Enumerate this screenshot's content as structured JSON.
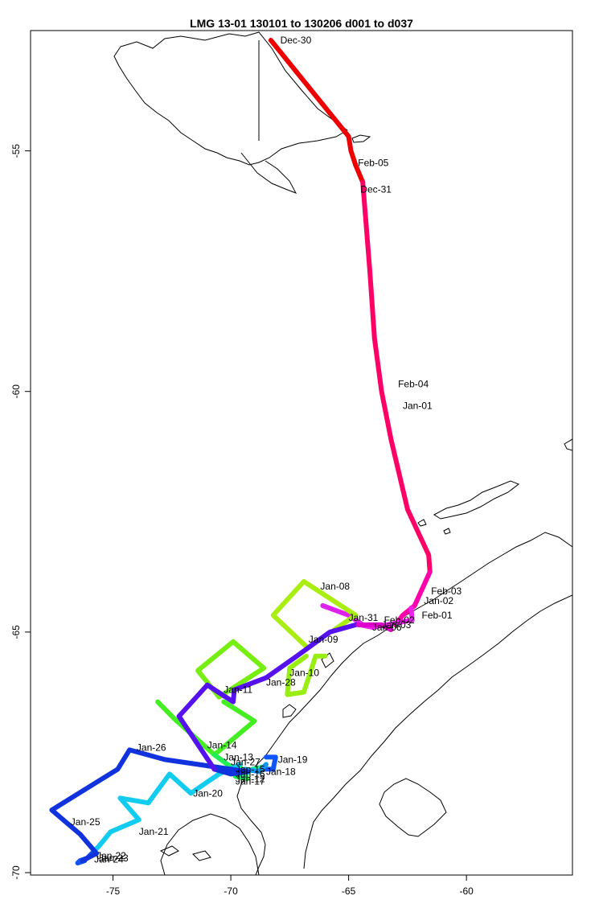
{
  "title": "LMG   13-01    130101 to 130206    d001 to d037",
  "chart_data": {
    "type": "map",
    "x_axis": {
      "ticks": [
        -75,
        -70,
        -65,
        -60
      ],
      "labels": [
        "-75",
        "-70",
        "-65",
        "-60"
      ]
    },
    "y_axis": {
      "ticks": [
        -55,
        -60,
        -65,
        -70
      ],
      "labels": [
        "-55",
        "-60",
        "-65",
        "-70"
      ]
    },
    "lon_range": [
      -78.5,
      -55.5
    ],
    "lat_range": [
      -70.05,
      -52.5
    ],
    "track_segments": [
      {
        "color": "#ee0000",
        "points": [
          [
            -68.3,
            -52.7
          ],
          [
            -65.0,
            -54.7
          ],
          [
            -64.9,
            -55.0
          ],
          [
            -64.7,
            -55.3
          ],
          [
            -64.4,
            -55.65
          ]
        ]
      },
      {
        "color": "#ff0066",
        "points": [
          [
            -64.4,
            -55.65
          ],
          [
            -64.1,
            -57.5
          ],
          [
            -63.9,
            -58.9
          ],
          [
            -63.6,
            -60.0
          ],
          [
            -63.2,
            -61.0
          ],
          [
            -62.5,
            -62.45
          ],
          [
            -61.6,
            -63.4
          ],
          [
            -61.55,
            -63.75
          ]
        ]
      },
      {
        "color": "#ff00aa",
        "points": [
          [
            -61.55,
            -63.75
          ],
          [
            -62.2,
            -64.45
          ],
          [
            -62.7,
            -64.65
          ],
          [
            -63.0,
            -64.85
          ]
        ]
      },
      {
        "color": "#ee22ee",
        "points": [
          [
            -62.35,
            -64.5
          ],
          [
            -62.3,
            -64.75
          ],
          [
            -63.4,
            -64.85
          ],
          [
            -64.0,
            -64.9
          ],
          [
            -64.5,
            -64.85
          ]
        ]
      },
      {
        "color": "#dd22ee",
        "points": [
          [
            -66.1,
            -64.45
          ],
          [
            -65.0,
            -64.65
          ],
          [
            -64.4,
            -64.85
          ]
        ]
      },
      {
        "color": "#aaee11",
        "points": [
          [
            -65.6,
            -64.95
          ],
          [
            -64.7,
            -64.65
          ],
          [
            -66.9,
            -63.95
          ],
          [
            -68.2,
            -64.65
          ],
          [
            -66.8,
            -65.3
          ]
        ]
      },
      {
        "color": "#99ee11",
        "points": [
          [
            -66.8,
            -65.5
          ],
          [
            -67.5,
            -65.75
          ],
          [
            -67.6,
            -66.3
          ],
          [
            -66.9,
            -66.25
          ],
          [
            -66.4,
            -65.5
          ],
          [
            -66.0,
            -65.5
          ]
        ]
      },
      {
        "color": "#77ee11",
        "points": [
          [
            -69.9,
            -65.2
          ],
          [
            -68.6,
            -65.75
          ],
          [
            -70.5,
            -66.35
          ],
          [
            -71.4,
            -65.8
          ],
          [
            -69.9,
            -65.2
          ]
        ]
      },
      {
        "color": "#44ee22",
        "points": [
          [
            -73.1,
            -66.45
          ],
          [
            -72.4,
            -66.8
          ],
          [
            -70.7,
            -67.55
          ],
          [
            -69.0,
            -66.85
          ],
          [
            -70.3,
            -66.45
          ]
        ]
      },
      {
        "color": "#22ee55",
        "points": [
          [
            -70.7,
            -67.55
          ],
          [
            -70.0,
            -67.8
          ],
          [
            -69.8,
            -68.0
          ],
          [
            -69.3,
            -68.05
          ],
          [
            -69.6,
            -67.8
          ]
        ]
      },
      {
        "color": "#22ee99",
        "points": [
          [
            -69.8,
            -67.9
          ],
          [
            -69.5,
            -68.0
          ],
          [
            -69.1,
            -67.85
          ],
          [
            -68.6,
            -67.8
          ]
        ]
      },
      {
        "color": "#1155ff",
        "points": [
          [
            -68.5,
            -67.6
          ],
          [
            -68.1,
            -67.6
          ],
          [
            -68.2,
            -67.85
          ],
          [
            -68.6,
            -67.85
          ]
        ]
      },
      {
        "color": "#1199ee",
        "points": [
          [
            -69.4,
            -67.85
          ],
          [
            -68.8,
            -67.9
          ],
          [
            -68.5,
            -67.75
          ]
        ]
      },
      {
        "color": "#11ccee",
        "points": [
          [
            -69.6,
            -67.75
          ],
          [
            -70.5,
            -67.95
          ],
          [
            -71.7,
            -68.35
          ],
          [
            -72.6,
            -67.95
          ],
          [
            -73.5,
            -68.55
          ],
          [
            -74.7,
            -68.45
          ],
          [
            -73.9,
            -68.9
          ],
          [
            -75.1,
            -69.15
          ],
          [
            -75.6,
            -69.45
          ],
          [
            -75.9,
            -69.6
          ]
        ]
      },
      {
        "color": "#1155ee",
        "points": [
          [
            -75.9,
            -69.6
          ],
          [
            -76.1,
            -69.7
          ],
          [
            -76.4,
            -69.75
          ],
          [
            -76.5,
            -69.8
          ],
          [
            -76.2,
            -69.75
          ]
        ]
      },
      {
        "color": "#1133dd",
        "points": [
          [
            -76.3,
            -69.75
          ],
          [
            -75.7,
            -69.6
          ],
          [
            -76.4,
            -69.2
          ],
          [
            -77.6,
            -68.7
          ],
          [
            -75.3,
            -68.0
          ],
          [
            -74.8,
            -67.85
          ],
          [
            -74.3,
            -67.45
          ],
          [
            -72.8,
            -67.65
          ],
          [
            -69.3,
            -67.9
          ],
          [
            -70.0,
            -67.95
          ],
          [
            -70.7,
            -67.85
          ]
        ]
      },
      {
        "color": "#5511ee",
        "points": [
          [
            -70.7,
            -67.85
          ],
          [
            -72.2,
            -66.75
          ],
          [
            -71.0,
            -66.1
          ],
          [
            -69.9,
            -66.45
          ],
          [
            -69.85,
            -66.2
          ],
          [
            -68.5,
            -65.95
          ],
          [
            -67.2,
            -65.5
          ],
          [
            -65.8,
            -65.0
          ],
          [
            -64.7,
            -64.85
          ]
        ]
      },
      {
        "color": "#dd00cc",
        "points": [
          [
            -64.6,
            -64.85
          ],
          [
            -63.6,
            -64.85
          ],
          [
            -63.2,
            -64.95
          ]
        ]
      }
    ],
    "annotations": [
      {
        "text": "Dec-30",
        "lon": -67.9,
        "lat": -52.7
      },
      {
        "text": "Feb-05",
        "lon": -64.6,
        "lat": -55.25
      },
      {
        "text": "Dec-31",
        "lon": -64.5,
        "lat": -55.8
      },
      {
        "text": "Feb-04",
        "lon": -62.9,
        "lat": -59.85
      },
      {
        "text": "Jan-01",
        "lon": -62.7,
        "lat": -60.3
      },
      {
        "text": "Feb-03",
        "lon": -61.5,
        "lat": -64.15
      },
      {
        "text": "Jan-02",
        "lon": -61.8,
        "lat": -64.35
      },
      {
        "text": "Feb-01",
        "lon": -61.9,
        "lat": -64.65
      },
      {
        "text": "Jan-08",
        "lon": -66.2,
        "lat": -64.05
      },
      {
        "text": "Jan-31",
        "lon": -65.0,
        "lat": -64.7
      },
      {
        "text": "Feb-02",
        "lon": -63.5,
        "lat": -64.75
      },
      {
        "text": "Jan-03",
        "lon": -63.6,
        "lat": -64.85
      },
      {
        "text": "Jan-06",
        "lon": -64.0,
        "lat": -64.9
      },
      {
        "text": "Jan-09",
        "lon": -66.7,
        "lat": -65.15
      },
      {
        "text": "Jan-10",
        "lon": -67.5,
        "lat": -65.85
      },
      {
        "text": "Jan-28",
        "lon": -68.5,
        "lat": -66.05
      },
      {
        "text": "Jan-11",
        "lon": -70.3,
        "lat": -66.2
      },
      {
        "text": "Jan-26",
        "lon": -74.0,
        "lat": -67.4
      },
      {
        "text": "Jan-14",
        "lon": -71.0,
        "lat": -67.35
      },
      {
        "text": "Jan-13",
        "lon": -70.3,
        "lat": -67.6
      },
      {
        "text": "Jan-27",
        "lon": -70.0,
        "lat": -67.7
      },
      {
        "text": "Jan-19",
        "lon": -68.0,
        "lat": -67.65
      },
      {
        "text": "Jan-15",
        "lon": -69.8,
        "lat": -67.85
      },
      {
        "text": "Jan-16",
        "lon": -69.8,
        "lat": -67.95
      },
      {
        "text": "Jan-18",
        "lon": -68.5,
        "lat": -67.9
      },
      {
        "text": "Jan-12",
        "lon": -69.8,
        "lat": -68.05
      },
      {
        "text": "Jan-17",
        "lon": -69.8,
        "lat": -68.1
      },
      {
        "text": "Jan-20",
        "lon": -71.6,
        "lat": -68.35
      },
      {
        "text": "Jan-25",
        "lon": -76.8,
        "lat": -68.95
      },
      {
        "text": "Jan-21",
        "lon": -73.9,
        "lat": -69.15
      },
      {
        "text": "Jan-22",
        "lon": -75.7,
        "lat": -69.65
      },
      {
        "text": "Jan-23",
        "lon": -75.6,
        "lat": -69.7
      },
      {
        "text": "Jan-24",
        "lon": -75.8,
        "lat": -69.72
      }
    ]
  }
}
